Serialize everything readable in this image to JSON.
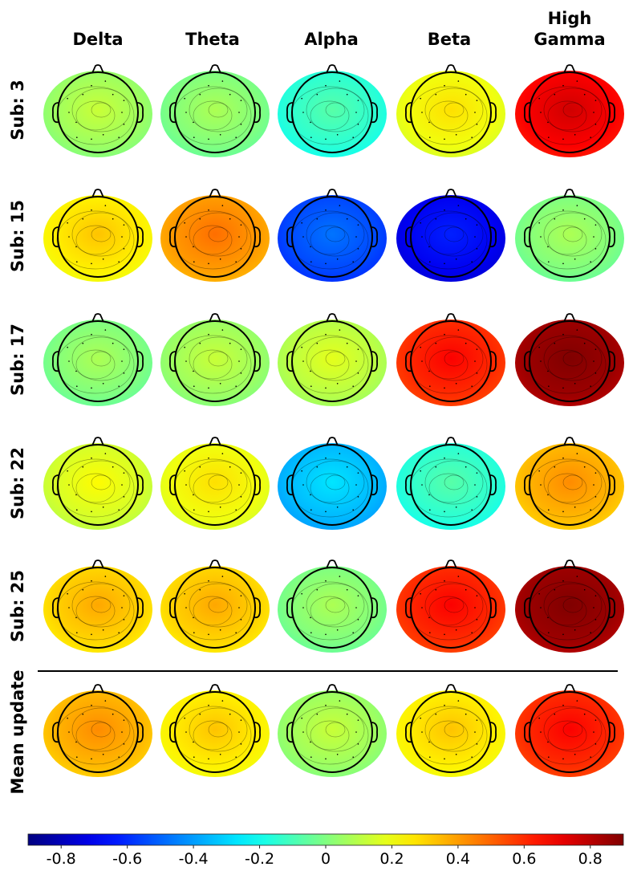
{
  "columns": [
    "Delta",
    "Theta",
    "Alpha",
    "Beta",
    "High\nGamma"
  ],
  "column_labels": {
    "delta": "Delta",
    "theta": "Theta",
    "alpha": "Alpha",
    "beta": "Beta",
    "high": "High",
    "gamma": "Gamma"
  },
  "rows": [
    {
      "label": "Sub: 3",
      "values": [
        0.05,
        0.0,
        -0.15,
        0.2,
        0.68
      ]
    },
    {
      "label": "Sub: 15",
      "values": [
        0.25,
        0.4,
        -0.55,
        -0.7,
        0.0
      ]
    },
    {
      "label": "Sub: 17",
      "values": [
        0.0,
        0.05,
        0.1,
        0.6,
        0.85
      ]
    },
    {
      "label": "Sub: 22",
      "values": [
        0.15,
        0.2,
        -0.35,
        -0.15,
        0.35
      ]
    },
    {
      "label": "Sub: 25",
      "values": [
        0.3,
        0.3,
        0.0,
        0.6,
        0.85
      ]
    },
    {
      "label": "Mean update",
      "values": [
        0.35,
        0.25,
        0.05,
        0.25,
        0.6
      ]
    }
  ],
  "colorbar": {
    "min": -0.9,
    "max": 0.9,
    "ticks": [
      "-0.8",
      "-0.6",
      "-0.4",
      "-0.2",
      "0",
      "0.2",
      "0.4",
      "0.6",
      "0.8"
    ],
    "tick_values": [
      -0.8,
      -0.6,
      -0.4,
      -0.2,
      0,
      0.2,
      0.4,
      0.6,
      0.8
    ],
    "colormap": "jet"
  }
}
